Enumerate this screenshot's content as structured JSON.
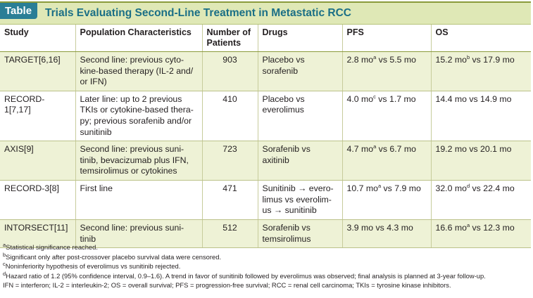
{
  "title": {
    "tag": "Table",
    "text": "Trials Evaluating Second-Line Treatment in Metastatic RCC"
  },
  "headers": [
    "Study",
    "Population Characteristics",
    "Number of Patients",
    "Drugs",
    "PFS",
    "OS"
  ],
  "rows": [
    {
      "study": "TARGET[6,16]",
      "population": "Second line: previous cyto-kine-based therapy (IL-2 and/ or IFN)",
      "patients": "903",
      "drugs": "Placebo vs sorafenib",
      "pfs": [
        "2.8 mo",
        "a",
        " vs 5.5 mo"
      ],
      "os": [
        "15.2 mo",
        "b",
        " vs 17.9 mo"
      ]
    },
    {
      "study": "RECORD-1[7,17]",
      "population": "Later line: up to 2 previous TKIs or cytokine-based thera-py; previous sorafenib and/or sunitinib",
      "patients": "410",
      "drugs": "Placebo vs everolimus",
      "pfs": [
        "4.0 mo",
        "c",
        " vs 1.7 mo"
      ],
      "os": [
        "14.4 mo vs 14.9 mo",
        "",
        ""
      ]
    },
    {
      "study": "AXIS[9]",
      "population": "Second line: previous suni-tinib, bevacizumab plus IFN, temsirolimus or cytokines",
      "patients": "723",
      "drugs": "Sorafenib vs axitinib",
      "pfs": [
        "4.7 mo",
        "a",
        " vs 6.7 mo"
      ],
      "os": [
        "19.2 mo vs 20.1 mo",
        "",
        ""
      ]
    },
    {
      "study": "RECORD-3[8]",
      "population": "First line",
      "patients": "471",
      "drugs": "Sunitinib → evero-limus vs everolim-us → sunitinib",
      "pfs": [
        "10.7 mo",
        "a",
        " vs 7.9 mo"
      ],
      "os": [
        "32.0 mo",
        "d",
        " vs 22.4 mo"
      ]
    },
    {
      "study": "INTORSECT[11]",
      "population": "Second line: previous suni-tinib",
      "patients": "512",
      "drugs": "Sorafenib vs temsirolimus",
      "pfs": [
        "3.9 mo vs 4.3 mo",
        "",
        ""
      ],
      "os": [
        "16.6 mo",
        "a",
        " vs 12.3 mo"
      ]
    }
  ],
  "footnotes": [
    {
      "mark": "a",
      "text": "Statistical significance reached."
    },
    {
      "mark": "b",
      "text": "Significant only after post-crossover placebo survival data were censored."
    },
    {
      "mark": "c",
      "text": "Noninferiority hypothesis of everolimus vs sunitinib rejected."
    },
    {
      "mark": "d",
      "text": "Hazard ratio of 1.2 (95% confidence interval, 0.9–1.6). A trend in favor of sunitinib followed by everolimus was observed; final analysis is planned at 3-year follow-up."
    },
    {
      "mark": "",
      "text": "IFN = interferon; IL-2 = interleukin-2; OS = overall survival; PFS = progression-free survival; RCC = renal cell carcinoma; TKIs = tyrosine kinase inhibitors."
    }
  ],
  "colors": {
    "header_band": "#dfe8b6",
    "tag": "#2a7e96",
    "title": "#1b6f86",
    "row_shade": "#eef2d6",
    "rule": "#8a9a3a"
  }
}
